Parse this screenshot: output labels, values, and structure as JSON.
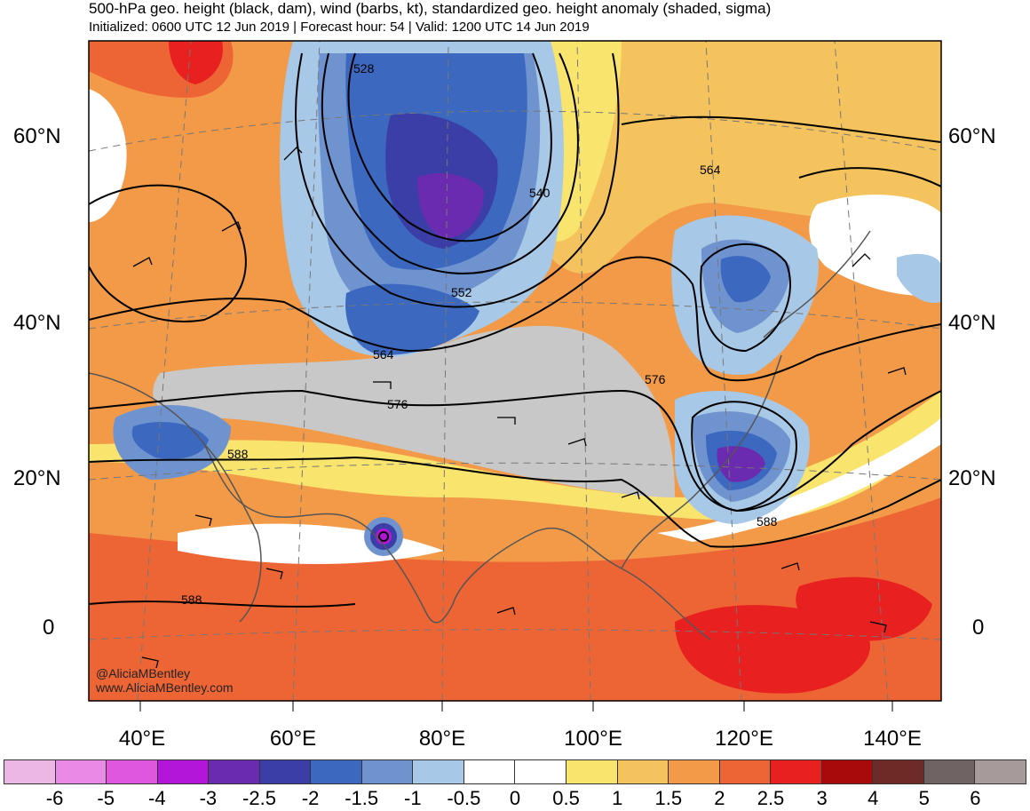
{
  "header": {
    "title": "500-hPa geo. height (black, dam), wind (barbs, kt), standardized geo. height anomaly (shaded, sigma)",
    "subtitle": "Initialized: 0600 UTC 12 Jun 2019 | Forecast hour: 54 | Valid: 1200 UTC 14 Jun 2019"
  },
  "axes": {
    "lat_labels": [
      "60°N",
      "40°N",
      "20°N",
      "0"
    ],
    "lon_labels": [
      "40°E",
      "60°E",
      "80°E",
      "100°E",
      "120°E",
      "140°E"
    ]
  },
  "contour_labels": [
    "528",
    "540",
    "552",
    "564",
    "564",
    "576",
    "576",
    "588",
    "588",
    "588"
  ],
  "credit": {
    "handle": "@AliciaMBentley",
    "site": "www.AliciaMBentley.com"
  },
  "colorbar": {
    "colors": [
      "#ebb8e6",
      "#e98be6",
      "#df56df",
      "#b316d9",
      "#6a2bb0",
      "#3a3ea6",
      "#3c69bf",
      "#6f93cf",
      "#a7c8e6",
      "#ffffff",
      "#ffffff",
      "#f9e46d",
      "#f4c35d",
      "#f29a48",
      "#ee6535",
      "#e8201f",
      "#a8090b",
      "#6e2a26",
      "#6f6363",
      "#a69a9a"
    ],
    "labels": [
      "-6",
      "-5",
      "-4",
      "-3",
      "-2.5",
      "-2",
      "-1.5",
      "-1",
      "-0.5",
      "0",
      "0.5",
      "1",
      "1.5",
      "2",
      "2.5",
      "3",
      "4",
      "5",
      "6"
    ]
  }
}
